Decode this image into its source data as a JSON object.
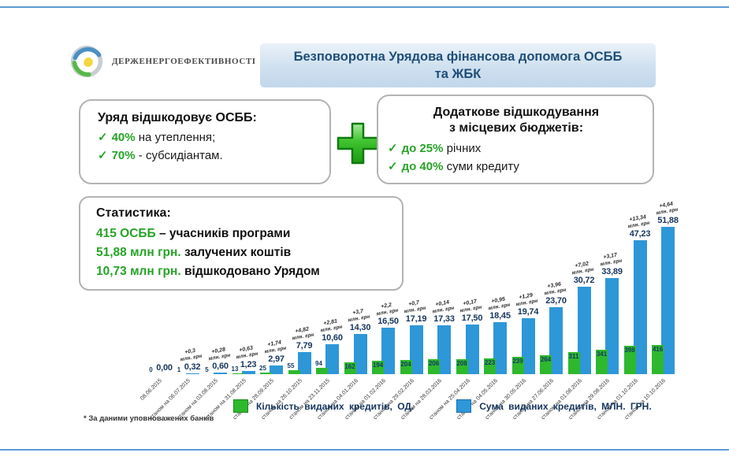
{
  "header": {
    "logo_text": "ДЕРЖЕНЕРГОЕФЕКТИВНОСТІ",
    "title": "Безповоротна Урядова фінансова допомога ОСББ та ЖБК"
  },
  "boxes": {
    "left": {
      "title": "Уряд відшкодовує ОСББ:",
      "items": [
        {
          "check": "✓",
          "highlight": "40%",
          "rest": " на утеплення;"
        },
        {
          "check": "✓",
          "highlight": "70%",
          "rest": " - субсидіантам."
        }
      ]
    },
    "right": {
      "title_line1": "Додаткове відшкодування",
      "title_line2": "з місцевих бюджетів:",
      "items": [
        {
          "check": "✓",
          "highlight": "до 25%",
          "rest": " річних"
        },
        {
          "check": "✓",
          "highlight": "до 40%",
          "rest": " суми кредиту"
        }
      ]
    },
    "stats": {
      "title": "Статистика:",
      "lines": [
        {
          "highlight": "415 ОСББ",
          "rest": " – учасників програми"
        },
        {
          "highlight": "51,88 млн грн.",
          "rest": " залучених коштів"
        },
        {
          "highlight": "10,73 млн грн.",
          "rest": " відшкодовано Урядом"
        }
      ]
    }
  },
  "chart_data": {
    "type": "bar",
    "title": "",
    "xlabel": "",
    "ylabel": "",
    "grid": false,
    "legend_position": "bottom",
    "categories": [
      "08.06.2015",
      "станом на 06.07.2015",
      "станом на 03.08.2015",
      "станом на 31.08.2015",
      "станом на 28.09.2015",
      "станом на 26.10.2015",
      "станом на 23.11.2015",
      "станом на 04.01.2016",
      "станом на 01.02.2016",
      "станом на 29.02.2016",
      "станом на 28.03.2016",
      "станом на 25.04.2016",
      "станом на 04.05.2016",
      "станом на 30.05.2016",
      "станом на 27.06.2016",
      "станом на 01.08.2016",
      "станом на 29.08.2016",
      "станом на 01.10.2016",
      "станом на 10.10.2016"
    ],
    "series": [
      {
        "name": "Кількість виданих кредитів, ОД.",
        "color": "#2eb82e",
        "values": [
          0,
          1,
          5,
          13,
          25,
          55,
          94,
          162,
          194,
          204,
          206,
          208,
          223,
          239,
          264,
          311,
          341,
          398,
          416
        ]
      },
      {
        "name": "Сума виданих кредитів, МЛН. ГРН.",
        "color": "#2e97d8",
        "values": [
          0.0,
          0.32,
          0.6,
          1.23,
          2.97,
          7.79,
          10.6,
          14.3,
          16.5,
          17.19,
          17.33,
          17.5,
          18.45,
          19.74,
          23.7,
          30.72,
          33.89,
          47.23,
          51.88
        ]
      }
    ],
    "sum_labels": [
      "0,00",
      "0,32",
      "0,60",
      "1,23",
      "2,97",
      "7,79",
      "10,60",
      "14,30",
      "16,50",
      "17,19",
      "17,33",
      "17,50",
      "18,45",
      "19,74",
      "23,70",
      "30,72",
      "33,89",
      "47,23",
      "51,88"
    ],
    "delta_annotations": [
      "",
      "+0,3",
      "+0,28",
      "+0,63",
      "+1,74",
      "+4,82",
      "+2,81",
      "+3,7",
      "+2,2",
      "+0,7",
      "+0,14",
      "+0,17",
      "+0,95",
      "+1,29",
      "+3,96",
      "+7,02",
      "+3,17",
      "+13,34",
      "+4,64"
    ],
    "annotation_unit": "млн. грн",
    "ylim_sum": [
      0,
      55
    ],
    "ylim_count": [
      0,
      450
    ]
  },
  "footnote": "* За даними уповноважених банків"
}
